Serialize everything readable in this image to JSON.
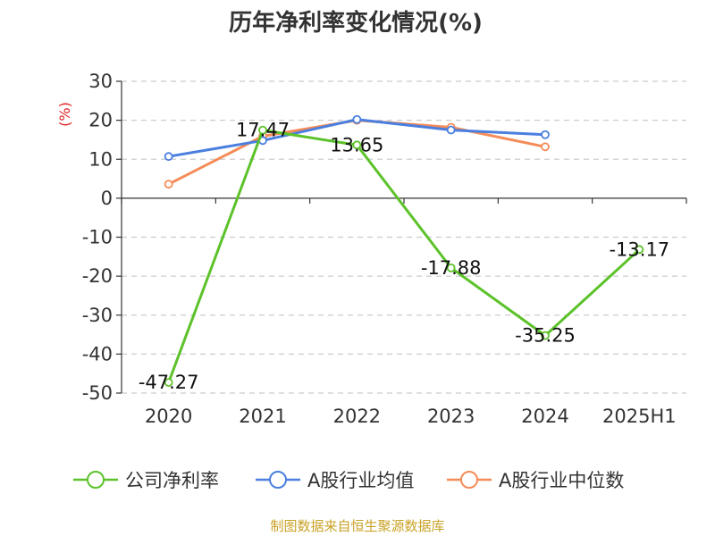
{
  "chart_data": {
    "type": "line",
    "title": "历年净利率变化情况(%)",
    "ylabel": "(%)",
    "xlabel": "",
    "categories": [
      "2020",
      "2021",
      "2022",
      "2023",
      "2024",
      "2025H1"
    ],
    "ylim": [
      -50,
      30
    ],
    "yticks": [
      30,
      20,
      10,
      0,
      -10,
      -20,
      -30,
      -40,
      -50
    ],
    "grid": true,
    "legend_position": "bottom",
    "series": [
      {
        "name": "公司净利率",
        "color": "#5cc22a",
        "values": [
          -47.27,
          17.47,
          13.65,
          -17.88,
          -35.25,
          -13.17
        ],
        "labels": [
          "-47.27",
          "17.47",
          "13.65",
          "-17.88",
          "-35.25",
          "-13.17"
        ]
      },
      {
        "name": "A股行业均值",
        "color": "#4a7fdf",
        "values": [
          10.7,
          14.8,
          20.2,
          17.5,
          16.3,
          null
        ]
      },
      {
        "name": "A股行业中位数",
        "color": "#f58b57",
        "values": [
          3.6,
          15.9,
          20.0,
          18.2,
          13.2,
          null
        ]
      }
    ]
  },
  "source": "制图数据来自恒生聚源数据库"
}
